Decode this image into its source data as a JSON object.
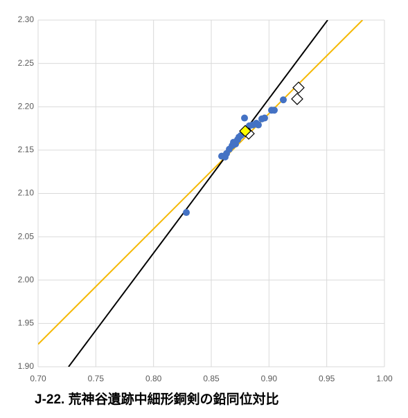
{
  "chart_data": {
    "type": "scatter",
    "title": "J-22. 荒神谷遺跡中細形銅剣の鉛同位対比",
    "xlim": [
      0.7,
      1.0
    ],
    "ylim": [
      1.9,
      2.3
    ],
    "xticks": [
      {
        "value": 0.7,
        "label": "0.70"
      },
      {
        "value": 0.75,
        "label": "0.75"
      },
      {
        "value": 0.8,
        "label": "0.80"
      },
      {
        "value": 0.85,
        "label": "0.85"
      },
      {
        "value": 0.9,
        "label": "0.90"
      },
      {
        "value": 0.95,
        "label": "0.95"
      },
      {
        "value": 1.0,
        "label": "1.00"
      }
    ],
    "yticks": [
      {
        "value": 1.9,
        "label": "1.90"
      },
      {
        "value": 1.95,
        "label": "1.95"
      },
      {
        "value": 2.0,
        "label": "2.00"
      },
      {
        "value": 2.05,
        "label": "2.05"
      },
      {
        "value": 2.1,
        "label": "2.10"
      },
      {
        "value": 2.15,
        "label": "2.15"
      },
      {
        "value": 2.2,
        "label": "2.20"
      },
      {
        "value": 2.25,
        "label": "2.25"
      },
      {
        "value": 2.3,
        "label": "2.30"
      }
    ],
    "grid": true,
    "series": [
      {
        "mode": "line",
        "color": "#f5b800",
        "x": [
          0.7,
          0.981
        ],
        "values": [
          1.926,
          2.3
        ]
      },
      {
        "mode": "line",
        "color": "#000000",
        "x": [
          0.7264,
          0.9508
        ],
        "values": [
          1.9,
          2.3
        ]
      },
      {
        "mode": "marker",
        "marker": "circle",
        "color": "#4472c4",
        "x": [
          0.8284,
          0.859,
          0.862,
          0.8632,
          0.8656,
          0.868,
          0.8692,
          0.871,
          0.8728,
          0.874,
          0.8758,
          0.8788,
          0.883,
          0.886,
          0.889,
          0.8908,
          0.8938,
          0.8962,
          0.9022,
          0.9046,
          0.9124
        ],
        "values": [
          2.078,
          2.143,
          2.142,
          2.146,
          2.151,
          2.155,
          2.159,
          2.157,
          2.162,
          2.165,
          2.167,
          2.187,
          2.178,
          2.179,
          2.181,
          2.179,
          2.186,
          2.187,
          2.196,
          2.196,
          2.208
        ]
      },
      {
        "mode": "marker",
        "marker": "diamond",
        "color": "#ffffff",
        "x": [
          0.8824,
          0.9256,
          0.9244
        ],
        "values": [
          2.169,
          2.222,
          2.209
        ]
      },
      {
        "mode": "marker",
        "marker": "diamond",
        "color": "#ffff00",
        "x": [
          0.8794
        ],
        "values": [
          2.172
        ]
      }
    ]
  }
}
